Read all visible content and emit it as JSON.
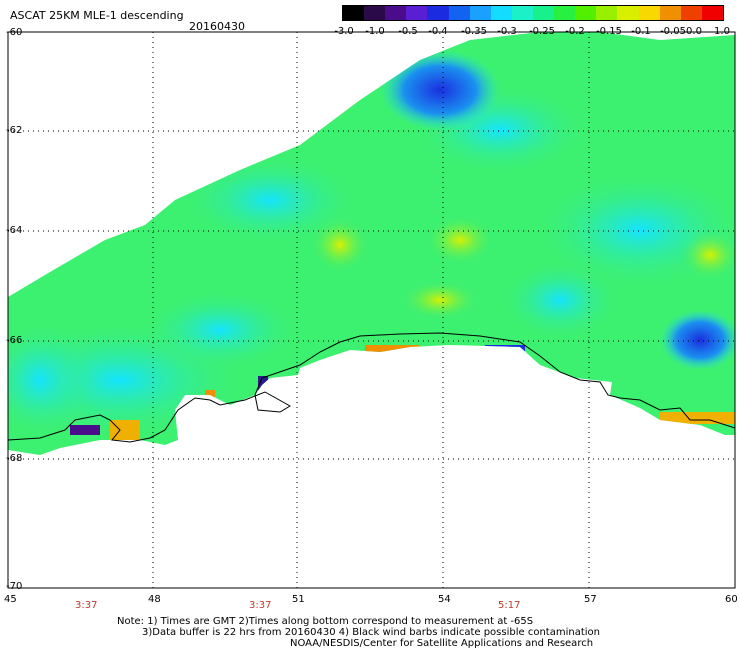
{
  "title": "ASCAT 25KM MLE-1 descending",
  "date": "20160430",
  "colorbar": {
    "labels": [
      "-3.0",
      "-1.0",
      "-0.5",
      "-0.4",
      "-0.35",
      "-0.3",
      "-0.25",
      "-0.2",
      "-0.15",
      "-0.1",
      "-0.05",
      "0.0",
      "1.0"
    ],
    "colors": [
      "#000000",
      "#2b0a4a",
      "#4b0c8c",
      "#5a1fd2",
      "#1a2be0",
      "#1463f0",
      "#1aa0ff",
      "#14dcff",
      "#1cf0c8",
      "#18f08c",
      "#28f040",
      "#52f000",
      "#98f000",
      "#d8f000",
      "#f8d800",
      "#f09000",
      "#f04000",
      "#f00000"
    ]
  },
  "lat_labels": [
    "-60",
    "-62",
    "-64",
    "-66",
    "-68",
    "-70"
  ],
  "lon_labels": [
    "45",
    "48",
    "51",
    "54",
    "57",
    "60"
  ],
  "time_labels": [
    "3:37",
    "3:37",
    "5:17"
  ],
  "note_lines": [
    "Note: 1) Times are GMT 2)Times along bottom correspond to measurement at -65S",
    "3)Data buffer is 22 hrs from 20160430 4) Black wind barbs indicate possible contamination",
    "NOAA/NESDIS/Center for Satellite Applications and Research"
  ],
  "colors": {
    "swath_green": "#40f070",
    "swath_cyan": "#28f0e8",
    "swath_yellow": "#c8f000",
    "swath_blue": "#1a40e8",
    "swath_orange": "#f0a000",
    "coast": "#000000",
    "grid": "#000000",
    "time_red": "#c0392b"
  }
}
